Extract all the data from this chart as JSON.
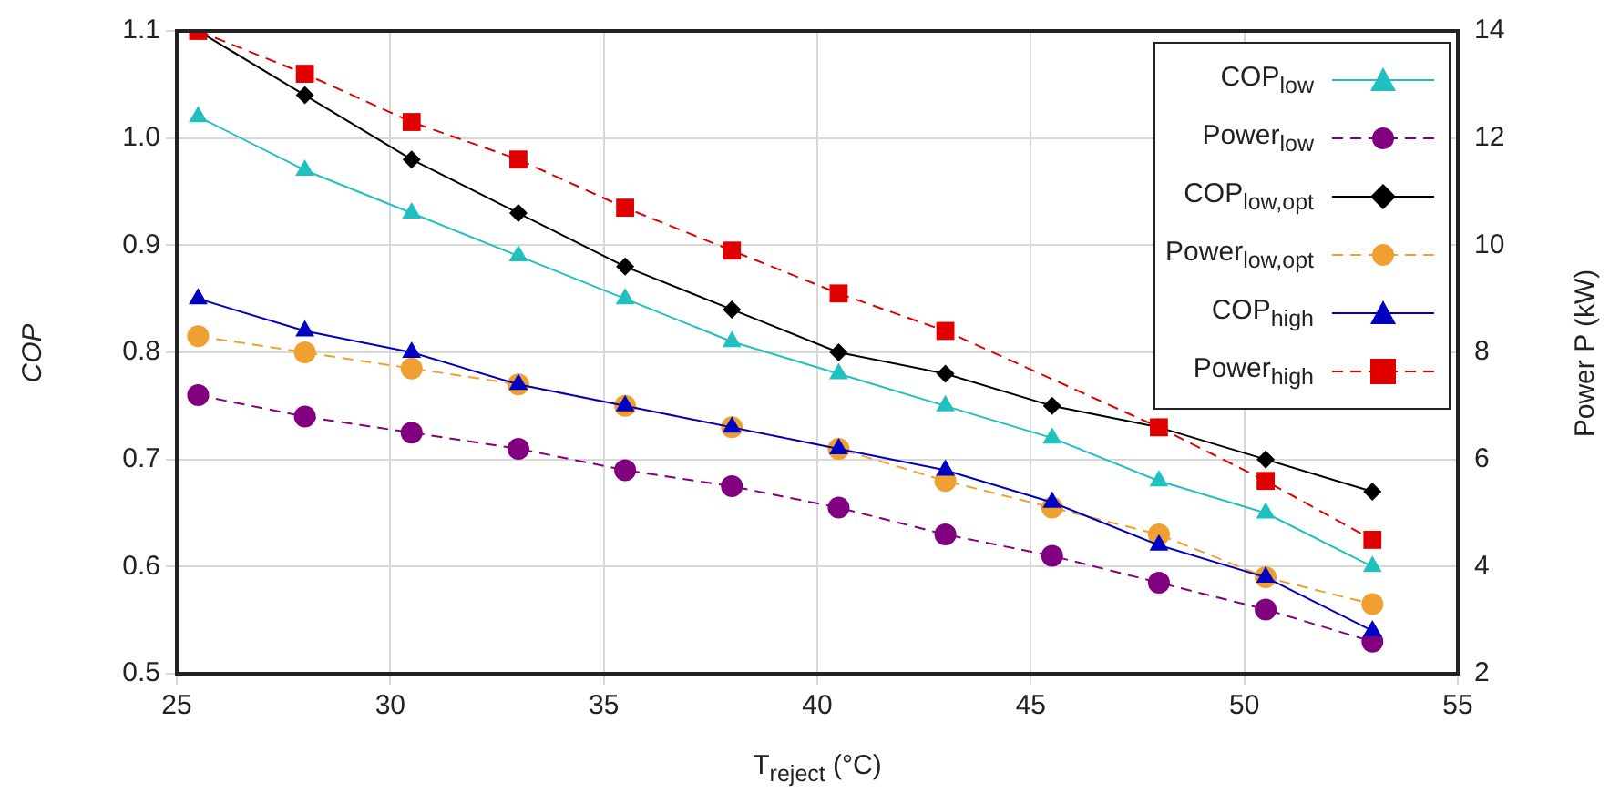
{
  "chart_data": {
    "type": "line",
    "xlabel": "T$_{reject}$ (°C)",
    "ylabel": "COP",
    "y2label": "Power P (kW)",
    "x": [
      25.5,
      28,
      30.5,
      33,
      35.5,
      38,
      40.5,
      43,
      45.5,
      48,
      50.5,
      53
    ],
    "xlim": [
      25,
      55
    ],
    "xticks": [
      25,
      30,
      35,
      40,
      45,
      50,
      55
    ],
    "ylim": [
      0.5,
      1.1
    ],
    "yticks": [
      0.5,
      0.6,
      0.7,
      0.8,
      0.9,
      {
        "value": 1,
        "label": "1.0"
      },
      1.1
    ],
    "y2lim": [
      2,
      14
    ],
    "y2ticks": [
      2,
      4,
      6,
      8,
      10,
      12,
      14
    ],
    "grid": true,
    "legend": "top right",
    "series": [
      {
        "name": "COP$_{low}$",
        "color": "#20c0c0",
        "marker": "triangle",
        "line_style": "solid",
        "values": [
          1.02,
          0.97,
          0.93,
          0.89,
          0.85,
          0.81,
          0.78,
          0.75,
          0.72,
          0.68,
          0.65,
          0.6
        ]
      },
      {
        "name": "Power$_{low}$",
        "color": "#800080",
        "marker": "circle",
        "line_style": "dashed",
        "axis": "y2",
        "values": [
          7.2,
          6.8,
          6.5,
          6.2,
          5.8,
          5.5,
          5.1,
          4.6,
          4.2,
          3.7,
          3.2,
          2.6
        ]
      },
      {
        "name": "COP$_{low,opt}$",
        "color": "#000000",
        "marker": "diamond",
        "line_style": "solid",
        "values": [
          1.1,
          1.04,
          0.98,
          0.93,
          0.88,
          0.84,
          0.8,
          0.78,
          0.75,
          0.73,
          0.7,
          0.67
        ]
      },
      {
        "name": "Power$_{low,opt}$",
        "color": "#f0a030",
        "marker": "circle",
        "line_style": "dashed",
        "axis": "y2",
        "values": [
          8.3,
          8.0,
          7.7,
          7.4,
          7.0,
          6.6,
          6.2,
          5.6,
          5.1,
          4.6,
          3.8,
          3.3
        ]
      },
      {
        "name": "COP$_{high}$",
        "color": "#0000c0",
        "marker": "triangle",
        "line_style": "solid",
        "values": [
          0.85,
          0.82,
          0.8,
          0.77,
          0.75,
          0.73,
          0.71,
          0.69,
          0.66,
          0.62,
          0.59,
          0.54
        ]
      },
      {
        "name": "Power$_{high}$",
        "color": "#e00000",
        "marker": "square",
        "line_style": "dashed",
        "axis": "y2",
        "values": [
          14.0,
          13.2,
          12.3,
          11.6,
          10.7,
          9.9,
          9.1,
          8.4,
          null,
          6.6,
          5.6,
          4.5
        ]
      }
    ]
  }
}
